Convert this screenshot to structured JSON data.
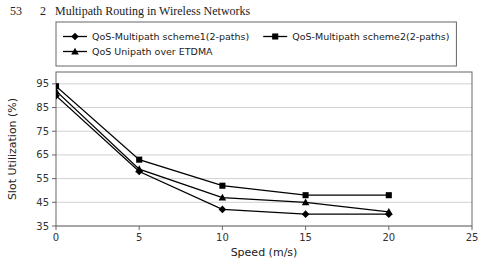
{
  "chart_data": {
    "type": "line",
    "title": "53      2   Multipath Routing in Wireless Networks",
    "xlabel": "Speed (m/s)",
    "ylabel": "Slot Utilization (%)",
    "x": [
      0,
      5,
      10,
      15,
      20
    ],
    "series": [
      {
        "name": "QoS-Multipath scheme1(2-paths)",
        "color": "#000000",
        "marker": "diamond",
        "values": [
          90,
          58,
          42,
          40,
          40
        ]
      },
      {
        "name": "QoS-Multipath scheme2(2-paths)",
        "color": "#000000",
        "marker": "square",
        "values": [
          94,
          63,
          52,
          48,
          48
        ]
      },
      {
        "name": "QoS Unipath over ETDMA",
        "color": "#000000",
        "marker": "triangle",
        "values": [
          92,
          59,
          47,
          45,
          41
        ]
      }
    ],
    "xlim": [
      0,
      25
    ],
    "ylim": [
      35,
      100
    ],
    "xticks": [
      0,
      5,
      10,
      15,
      20,
      25
    ],
    "yticks": [
      35,
      45,
      55,
      65,
      75,
      85,
      95
    ],
    "grid": "y",
    "legend": "top-left"
  }
}
